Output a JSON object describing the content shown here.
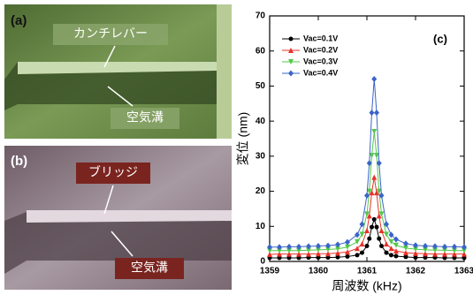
{
  "panels": {
    "a": {
      "label": "(a)",
      "callouts": [
        "カンチレバー",
        "空気溝"
      ]
    },
    "b": {
      "label": "(b)",
      "callouts": [
        "ブリッジ",
        "空気溝"
      ]
    }
  },
  "chart_data": {
    "type": "line",
    "label": "(c)",
    "xlabel": "周波数 (kHz)",
    "ylabel": "変位 (nm)",
    "xlim": [
      1359,
      1363
    ],
    "xticks": [
      1359,
      1360,
      1361,
      1362,
      1363
    ],
    "ylim": [
      0,
      70
    ],
    "yticks": [
      0,
      10,
      20,
      30,
      40,
      50,
      60,
      70
    ],
    "legend": "upper-left",
    "x": [
      1359.0,
      1359.2,
      1359.4,
      1359.6,
      1359.8,
      1360.0,
      1360.2,
      1360.4,
      1360.6,
      1360.8,
      1360.9,
      1361.0,
      1361.05,
      1361.1,
      1361.15,
      1361.2,
      1361.25,
      1361.3,
      1361.4,
      1361.5,
      1361.6,
      1361.8,
      1362.0,
      1362.2,
      1362.4,
      1362.6,
      1362.8,
      1363.0
    ],
    "series": [
      {
        "name": "Vac=0.1V",
        "color": "#000000",
        "marker": "circle",
        "values": [
          1,
          1,
          1,
          1,
          1.1,
          1.1,
          1.1,
          1.2,
          1.4,
          1.8,
          2.5,
          4.4,
          6.5,
          9.8,
          12,
          9.8,
          6.5,
          4.4,
          2.5,
          1.8,
          1.5,
          1.3,
          1.1,
          1.1,
          1.1,
          1,
          1,
          1
        ]
      },
      {
        "name": "Vac=0.2V",
        "color": "#e8322a",
        "marker": "triangle",
        "values": [
          2,
          2.1,
          2.1,
          2.1,
          2.1,
          2.2,
          2.2,
          2.4,
          2.7,
          3.7,
          5,
          8.8,
          13,
          19.6,
          24,
          19.6,
          13,
          8.8,
          5,
          3.7,
          3,
          2.5,
          2.3,
          2.2,
          2.1,
          2.1,
          2.1,
          2.1
        ]
      },
      {
        "name": "Vac=0.3V",
        "color": "#55c84a",
        "marker": "triangle-down",
        "values": [
          3.1,
          3.1,
          3.1,
          3.1,
          3.2,
          3.3,
          3.4,
          3.6,
          4.1,
          5.6,
          7.7,
          13.5,
          20,
          30.2,
          37,
          30.2,
          20,
          13.5,
          7.7,
          5.6,
          4.6,
          3.8,
          3.5,
          3.3,
          3.2,
          3.2,
          3.1,
          3.1
        ]
      },
      {
        "name": "Vac=0.4V",
        "color": "#3a64c8",
        "marker": "diamond",
        "values": [
          4.1,
          4.1,
          4.2,
          4.2,
          4.3,
          4.4,
          4.5,
          4.8,
          5.5,
          7.6,
          10.6,
          18.8,
          28,
          42.4,
          52,
          42.4,
          28,
          18.8,
          10.6,
          7.6,
          6.3,
          5.1,
          4.6,
          4.4,
          4.3,
          4.2,
          4.2,
          4.1
        ]
      }
    ]
  }
}
